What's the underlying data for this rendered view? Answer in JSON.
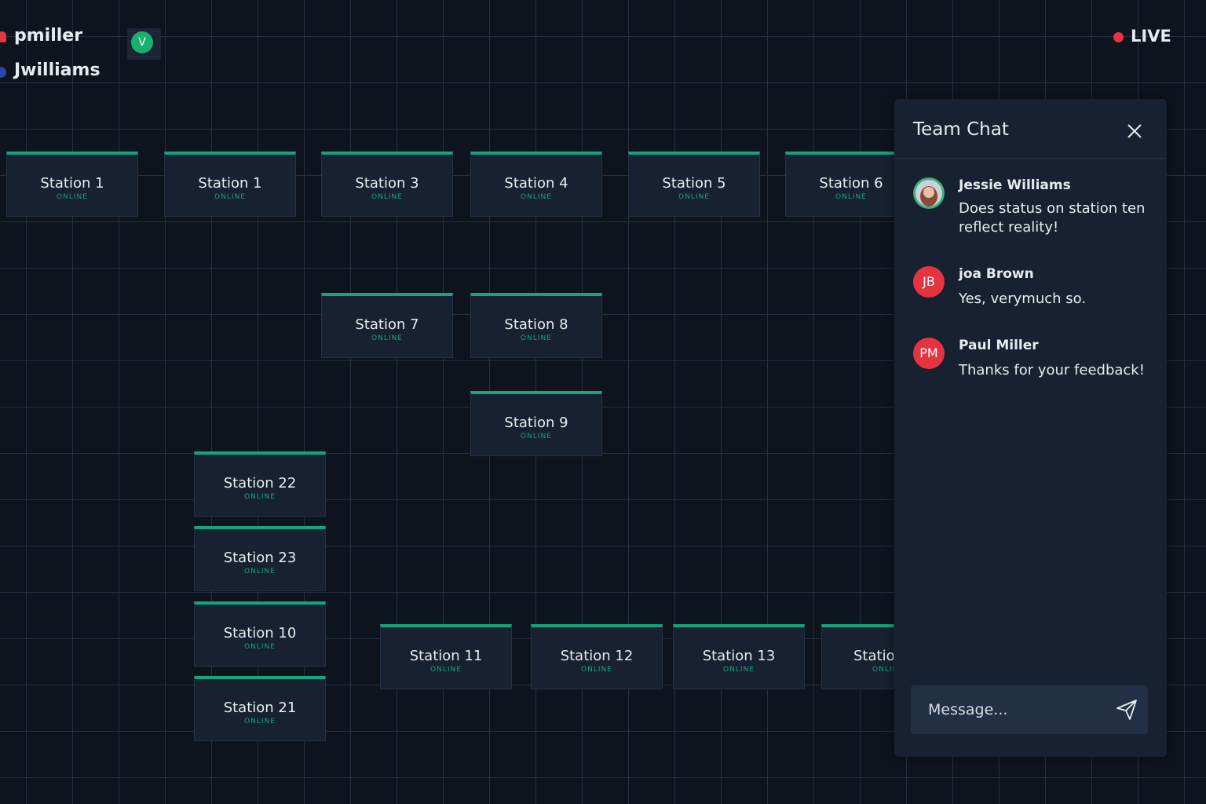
{
  "users": [
    {
      "name": "pmiller"
    },
    {
      "name": "Jwilliams"
    }
  ],
  "badge": "V",
  "live": "LIVE",
  "stations": [
    {
      "name": "Station 1",
      "status": "ONLINE"
    },
    {
      "name": "Station 1",
      "status": "ONLINE"
    },
    {
      "name": "Station 3",
      "status": "ONLINE"
    },
    {
      "name": "Station 4",
      "status": "ONLINE"
    },
    {
      "name": "Station 5",
      "status": "ONLINE"
    },
    {
      "name": "Station 6",
      "status": "ONLINE"
    },
    {
      "name": "Station 7",
      "status": "ONLINE"
    },
    {
      "name": "Station 8",
      "status": "ONLINE"
    },
    {
      "name": "Station 9",
      "status": "ONLINE"
    },
    {
      "name": "Station 22",
      "status": "ONLINE"
    },
    {
      "name": "Station 23",
      "status": "ONLINE"
    },
    {
      "name": "Station 10",
      "status": "ONLINE"
    },
    {
      "name": "Station 21",
      "status": "ONLINE"
    },
    {
      "name": "Station 11",
      "status": "ONLINE"
    },
    {
      "name": "Station 12",
      "status": "ONLINE"
    },
    {
      "name": "Station 13",
      "status": "ONLINE"
    },
    {
      "name": "Statio",
      "status": "ONLIN"
    }
  ],
  "chat": {
    "title": "Team Chat",
    "messages": [
      {
        "initials": null,
        "author": "Jessie Williams",
        "text": "Does status on station ten reflect reality!"
      },
      {
        "initials": "JB",
        "author": "joa Brown",
        "text": "Yes, verymuch so."
      },
      {
        "initials": "PM",
        "author": "Paul Miller",
        "text": "Thanks for your feedback!"
      }
    ],
    "placeholder": "Message..."
  }
}
